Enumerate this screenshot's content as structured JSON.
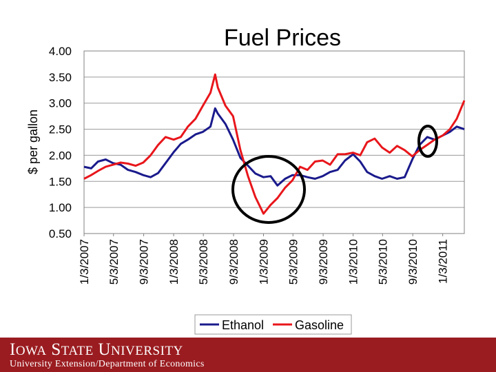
{
  "chart_data": {
    "type": "line",
    "title": "Fuel Prices",
    "xlabel": "",
    "ylabel": "$ per gallon",
    "ylim": [
      0.5,
      4.0
    ],
    "yticks": [
      "4.00",
      "3.50",
      "3.00",
      "2.50",
      "2.00",
      "1.50",
      "1.00",
      "0.50"
    ],
    "xlim": [
      "2007-01-03",
      "2011-04-01"
    ],
    "xticks": [
      "1/3/2007",
      "5/3/2007",
      "9/3/2007",
      "1/3/2008",
      "5/3/2008",
      "9/3/2008",
      "1/3/2009",
      "5/3/2009",
      "9/3/2009",
      "1/3/2010",
      "5/3/2010",
      "9/3/2010",
      "1/3/2011"
    ],
    "grid": true,
    "legend": "bottom",
    "series": [
      {
        "name": "Ethanol",
        "color": "#1a1a8c",
        "x": [
          "2007-01-03",
          "2007-02-01",
          "2007-03-01",
          "2007-04-01",
          "2007-05-01",
          "2007-06-01",
          "2007-07-01",
          "2007-08-01",
          "2007-09-01",
          "2007-10-01",
          "2007-11-01",
          "2007-12-01",
          "2008-01-03",
          "2008-02-01",
          "2008-03-01",
          "2008-04-01",
          "2008-05-01",
          "2008-06-01",
          "2008-06-20",
          "2008-07-01",
          "2008-08-01",
          "2008-09-01",
          "2008-10-01",
          "2008-11-01",
          "2008-12-01",
          "2009-01-03",
          "2009-02-01",
          "2009-03-01",
          "2009-04-01",
          "2009-05-01",
          "2009-06-01",
          "2009-07-01",
          "2009-08-01",
          "2009-09-01",
          "2009-10-01",
          "2009-11-01",
          "2009-12-01",
          "2010-01-03",
          "2010-02-01",
          "2010-03-01",
          "2010-04-01",
          "2010-05-01",
          "2010-06-01",
          "2010-07-01",
          "2010-08-01",
          "2010-09-01",
          "2010-10-01",
          "2010-11-01",
          "2010-12-01",
          "2011-01-03",
          "2011-02-01",
          "2011-03-01",
          "2011-04-01"
        ],
        "y": [
          1.78,
          1.75,
          1.88,
          1.92,
          1.85,
          1.82,
          1.72,
          1.68,
          1.62,
          1.58,
          1.66,
          1.85,
          2.06,
          2.22,
          2.3,
          2.4,
          2.45,
          2.55,
          2.9,
          2.8,
          2.6,
          2.3,
          1.95,
          1.8,
          1.65,
          1.58,
          1.6,
          1.42,
          1.55,
          1.62,
          1.62,
          1.58,
          1.55,
          1.6,
          1.68,
          1.72,
          1.9,
          2.02,
          1.88,
          1.68,
          1.6,
          1.55,
          1.6,
          1.55,
          1.58,
          1.92,
          2.2,
          2.35,
          2.3,
          2.38,
          2.45,
          2.55,
          2.5
        ]
      },
      {
        "name": "Gasoline",
        "color": "#e8161b",
        "x": [
          "2007-01-03",
          "2007-02-01",
          "2007-03-01",
          "2007-04-01",
          "2007-05-01",
          "2007-06-01",
          "2007-07-01",
          "2007-08-01",
          "2007-09-01",
          "2007-10-01",
          "2007-11-01",
          "2007-12-01",
          "2008-01-03",
          "2008-02-01",
          "2008-03-01",
          "2008-04-01",
          "2008-05-01",
          "2008-06-01",
          "2008-06-20",
          "2008-07-01",
          "2008-08-01",
          "2008-09-01",
          "2008-10-01",
          "2008-11-01",
          "2008-12-01",
          "2009-01-03",
          "2009-02-01",
          "2009-03-01",
          "2009-04-01",
          "2009-05-01",
          "2009-06-01",
          "2009-07-01",
          "2009-08-01",
          "2009-09-01",
          "2009-10-01",
          "2009-11-01",
          "2009-12-01",
          "2010-01-03",
          "2010-02-01",
          "2010-03-01",
          "2010-04-01",
          "2010-05-01",
          "2010-06-01",
          "2010-07-01",
          "2010-08-01",
          "2010-09-01",
          "2010-10-01",
          "2010-11-01",
          "2010-12-01",
          "2011-01-03",
          "2011-02-01",
          "2011-03-01",
          "2011-04-01"
        ],
        "y": [
          1.55,
          1.62,
          1.7,
          1.78,
          1.82,
          1.86,
          1.84,
          1.8,
          1.86,
          2.0,
          2.2,
          2.35,
          2.3,
          2.35,
          2.55,
          2.7,
          2.95,
          3.2,
          3.55,
          3.3,
          2.95,
          2.75,
          2.1,
          1.6,
          1.2,
          0.88,
          1.05,
          1.18,
          1.38,
          1.52,
          1.78,
          1.72,
          1.88,
          1.9,
          1.82,
          2.02,
          2.02,
          2.05,
          2.0,
          2.25,
          2.32,
          2.15,
          2.05,
          2.18,
          2.1,
          1.98,
          2.1,
          2.2,
          2.3,
          2.38,
          2.5,
          2.7,
          3.05
        ]
      }
    ]
  }
}
